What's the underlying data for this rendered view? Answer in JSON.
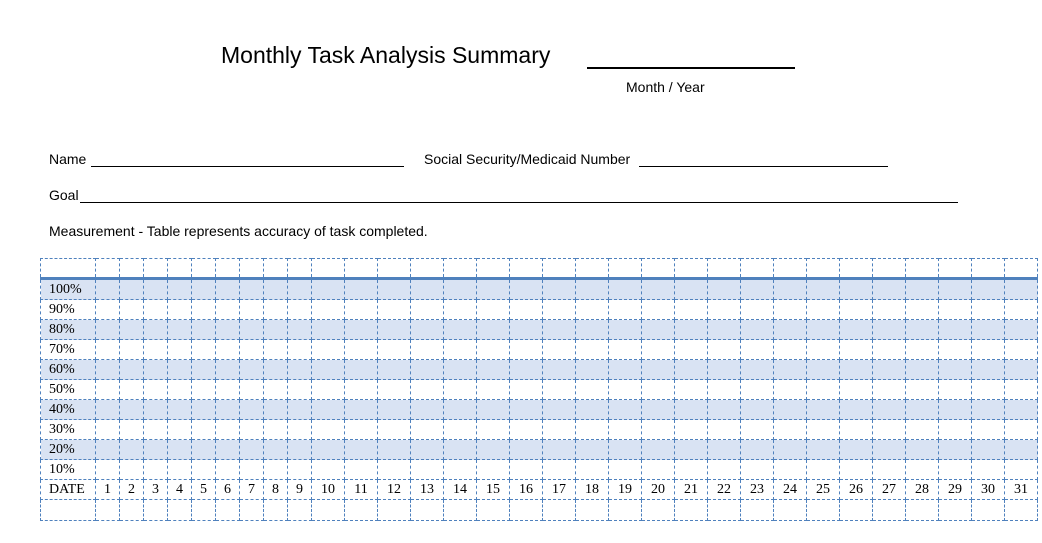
{
  "header": {
    "title": "Monthly Task Analysis Summary",
    "month_year_label": "Month  /  Year"
  },
  "fields": {
    "name_label": "Name",
    "ssn_label": "Social Security/Medicaid Number",
    "goal_label": "Goal",
    "measurement": "Measurement -  Table represents accuracy of task completed."
  },
  "grid": {
    "row_labels": [
      "100%",
      "90%",
      "80%",
      "70%",
      "60%",
      "50%",
      "40%",
      "30%",
      "20%",
      "10%"
    ],
    "date_label": "DATE",
    "days": [
      "1",
      "2",
      "3",
      "4",
      "5",
      "6",
      "7",
      "8",
      "9",
      "10",
      "11",
      "12",
      "13",
      "14",
      "15",
      "16",
      "17",
      "18",
      "19",
      "20",
      "21",
      "22",
      "23",
      "24",
      "25",
      "26",
      "27",
      "28",
      "29",
      "30",
      "31"
    ]
  }
}
